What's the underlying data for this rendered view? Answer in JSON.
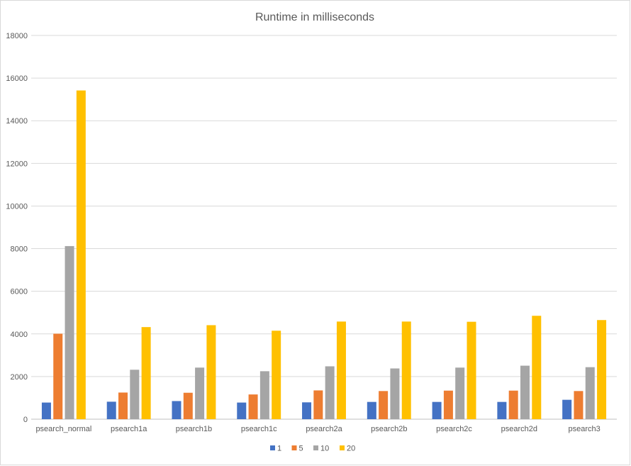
{
  "chart_data": {
    "type": "bar",
    "title": "Runtime in milliseconds",
    "xlabel": "",
    "ylabel": "",
    "categories": [
      "psearch_normal",
      "psearch1a",
      "psearch1b",
      "psearch1c",
      "psearch2a",
      "psearch2b",
      "psearch2c",
      "psearch2d",
      "psearch3"
    ],
    "series": [
      {
        "name": "1",
        "color": "#4472C4",
        "values": [
          780,
          820,
          850,
          780,
          790,
          810,
          810,
          810,
          910
        ]
      },
      {
        "name": "5",
        "color": "#ED7D31",
        "values": [
          4010,
          1250,
          1240,
          1160,
          1350,
          1320,
          1340,
          1340,
          1320
        ]
      },
      {
        "name": "10",
        "color": "#A5A5A5",
        "values": [
          8120,
          2320,
          2420,
          2250,
          2480,
          2380,
          2420,
          2510,
          2440
        ]
      },
      {
        "name": "20",
        "color": "#FFC000",
        "values": [
          15420,
          4320,
          4410,
          4150,
          4580,
          4580,
          4570,
          4850,
          4650
        ]
      }
    ],
    "ylim": [
      0,
      18000
    ],
    "ytick_step": 2000,
    "grid": true,
    "legend_position": "bottom"
  }
}
